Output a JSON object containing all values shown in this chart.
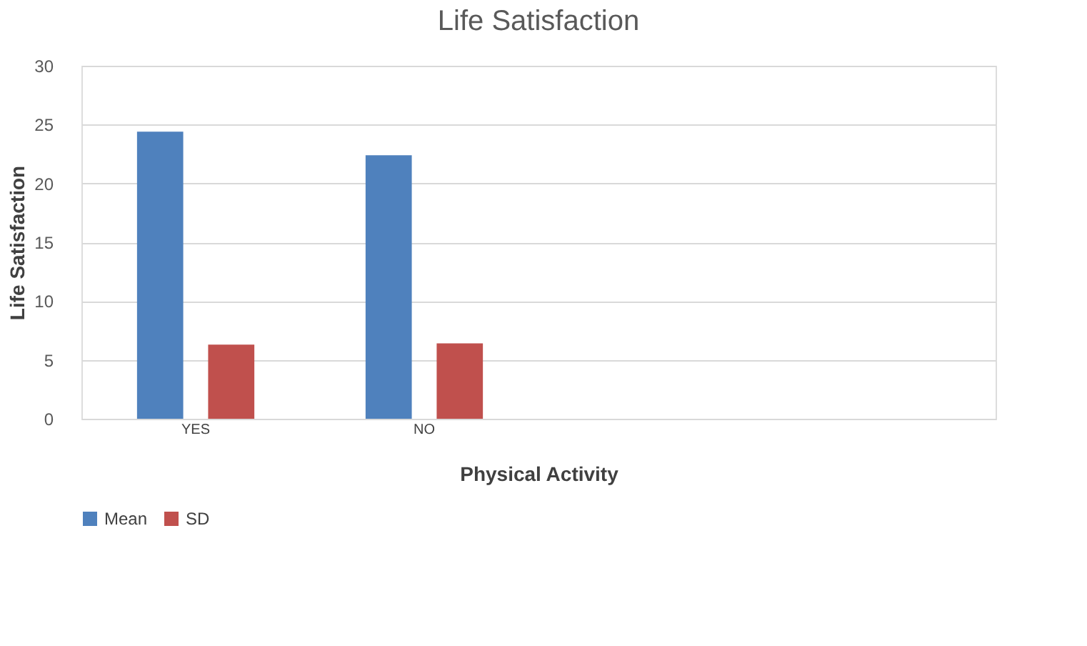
{
  "chart_data": {
    "type": "bar",
    "title": "Life Satisfaction",
    "xlabel": "Physical Activity",
    "ylabel": "Life Satisfaction",
    "categories": [
      "YES",
      "NO",
      null,
      null
    ],
    "series": [
      {
        "name": "Mean",
        "color": "#4f81bd",
        "values": [
          24.4,
          22.4,
          null,
          null
        ]
      },
      {
        "name": "SD",
        "color": "#c0504d",
        "values": [
          6.3,
          6.4,
          null,
          null
        ]
      }
    ],
    "ylim": [
      0,
      30
    ],
    "yticks": [
      0,
      5,
      10,
      15,
      20,
      25,
      30
    ],
    "grid": "y",
    "legend": "bottom"
  }
}
